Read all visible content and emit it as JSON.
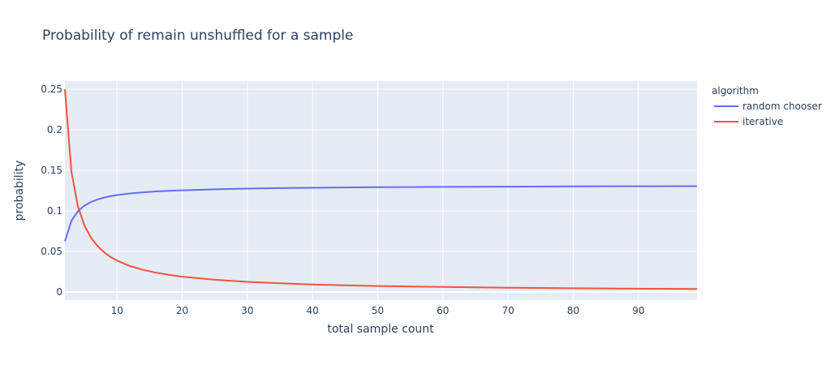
{
  "chart_data": {
    "type": "line",
    "title": "Probability of remain unshuffled for a sample",
    "xlabel": "total sample count",
    "ylabel": "probability",
    "xlim": [
      2,
      99
    ],
    "ylim": [
      -0.01,
      0.26
    ],
    "x_ticks": [
      10,
      20,
      30,
      40,
      50,
      60,
      70,
      80,
      90
    ],
    "y_ticks": [
      0,
      0.05,
      0.1,
      0.15,
      0.2,
      0.25
    ],
    "y_tick_labels": [
      "0",
      "0.05",
      "0.1",
      "0.15",
      "0.2",
      "0.25"
    ],
    "grid": true,
    "legend": {
      "title": "algorithm",
      "position": "right"
    },
    "series": [
      {
        "name": "random chooser",
        "color": "#636efa",
        "x": [
          2,
          3,
          4,
          5,
          6,
          7,
          8,
          9,
          10,
          12,
          14,
          16,
          18,
          20,
          25,
          30,
          35,
          40,
          45,
          50,
          60,
          70,
          80,
          90,
          99
        ],
        "y": [
          0.0625,
          0.0878,
          0.0998,
          0.1066,
          0.111,
          0.1141,
          0.1164,
          0.1181,
          0.1195,
          0.1215,
          0.1229,
          0.124,
          0.1248,
          0.1254,
          0.1266,
          0.1275,
          0.1281,
          0.1285,
          0.1289,
          0.1292,
          0.1296,
          0.1299,
          0.1302,
          0.1304,
          0.1305
        ]
      },
      {
        "name": "iterative",
        "color": "#ef553b",
        "x": [
          2,
          3,
          4,
          5,
          6,
          7,
          8,
          9,
          10,
          12,
          14,
          16,
          18,
          20,
          25,
          30,
          35,
          40,
          45,
          50,
          60,
          70,
          80,
          90,
          99
        ],
        "y": [
          0.25,
          0.1481,
          0.1055,
          0.0819,
          0.067,
          0.0567,
          0.0491,
          0.0433,
          0.0387,
          0.032,
          0.0273,
          0.0238,
          0.0211,
          0.0189,
          0.0151,
          0.0125,
          0.0107,
          0.0093,
          0.0083,
          0.0074,
          0.0062,
          0.0053,
          0.0046,
          0.0041,
          0.0037
        ]
      }
    ]
  }
}
